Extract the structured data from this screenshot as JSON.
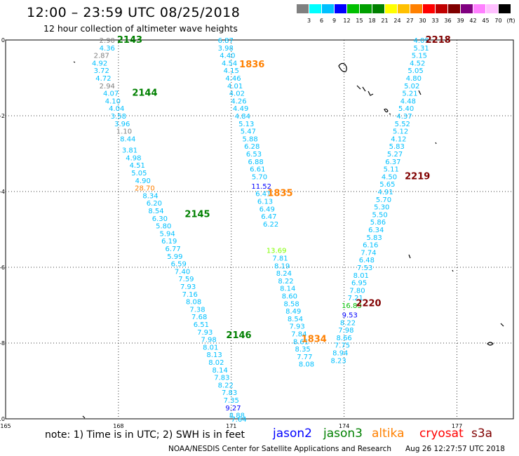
{
  "title": "12:00  –  23:59 UTC 08/25/2018",
  "subtitle": "12 hour collection of altimeter wave heights",
  "legend": {
    "colors": [
      "#808080",
      "#00ffff",
      "#00c0ff",
      "#0000ff",
      "#00c000",
      "#00a000",
      "#008000",
      "#ffff00",
      "#ffc000",
      "#ff8000",
      "#ff0000",
      "#c00000",
      "#800000",
      "#800080",
      "#ff80ff",
      "#ffc0ff",
      "#000000"
    ],
    "labels": [
      "3",
      "6",
      "9",
      "12",
      "15",
      "18",
      "21",
      "24",
      "27",
      "30",
      "33",
      "36",
      "39",
      "42",
      "45",
      "70",
      "(ft)"
    ]
  },
  "note": "note:  1) Time is in UTC;  2) SWH is in feet",
  "satellites": [
    {
      "name": "jason2",
      "color": "#0000ff"
    },
    {
      "name": "jason3",
      "color": "#008000"
    },
    {
      "name": "altika",
      "color": "#ff8000"
    },
    {
      "name": "cryosat",
      "color": "#ff0000"
    },
    {
      "name": "s3a",
      "color": "#800000"
    }
  ],
  "credit": "NOAA/NESDIS Center for Satellite Applications and Research",
  "timestamp": "Aug 26 12:27:57 UTC 2018",
  "chart_data": {
    "type": "scatter",
    "x_ticks": [
      "165",
      "168",
      "171",
      "174",
      "177"
    ],
    "y_ticks": [
      "0",
      "-2",
      "-4",
      "-6",
      "-8",
      "-10"
    ],
    "xlim": [
      165,
      178.5
    ],
    "ylim": [
      -10,
      0
    ],
    "grid": true,
    "pass_labels": [
      {
        "text": "2143",
        "lon": 168.3,
        "lat": 0.0,
        "color": "#008000"
      },
      {
        "text": "2144",
        "lon": 168.7,
        "lat": -1.4,
        "color": "#008000"
      },
      {
        "text": "2145",
        "lon": 170.1,
        "lat": -4.6,
        "color": "#008000"
      },
      {
        "text": "2146",
        "lon": 171.2,
        "lat": -7.8,
        "color": "#008000"
      },
      {
        "text": "1836",
        "lon": 171.55,
        "lat": -0.65,
        "color": "#ff8000"
      },
      {
        "text": "1835",
        "lon": 172.3,
        "lat": -4.05,
        "color": "#ff8000"
      },
      {
        "text": "1834",
        "lon": 173.2,
        "lat": -7.9,
        "color": "#ff8000"
      },
      {
        "text": "2218",
        "lon": 176.5,
        "lat": 0.0,
        "color": "#800000"
      },
      {
        "text": "2219",
        "lon": 175.95,
        "lat": -3.6,
        "color": "#800000"
      },
      {
        "text": "2220",
        "lon": 174.65,
        "lat": -6.95,
        "color": "#800000"
      }
    ],
    "series": [
      {
        "name": "jason3 pass 2143-2146",
        "color": "#00c0ff",
        "points": [
          {
            "lon": 167.7,
            "lat": 0.0,
            "v": "2.90",
            "c": "#808080"
          },
          {
            "lon": 167.7,
            "lat": -0.2,
            "v": "4.36"
          },
          {
            "lon": 167.55,
            "lat": -0.4,
            "v": "2.87",
            "c": "#808080"
          },
          {
            "lon": 167.5,
            "lat": -0.6,
            "v": "4.92"
          },
          {
            "lon": 167.55,
            "lat": -0.8,
            "v": "3.72"
          },
          {
            "lon": 167.6,
            "lat": -1.0,
            "v": "4.72"
          },
          {
            "lon": 167.7,
            "lat": -1.2,
            "v": "2.94",
            "c": "#808080"
          },
          {
            "lon": 167.8,
            "lat": -1.4,
            "v": "4.07"
          },
          {
            "lon": 167.85,
            "lat": -1.6,
            "v": "4.10"
          },
          {
            "lon": 167.95,
            "lat": -1.8,
            "v": "4.04"
          },
          {
            "lon": 168.0,
            "lat": -2.0,
            "v": "3.58"
          },
          {
            "lon": 168.1,
            "lat": -2.2,
            "v": "3.96"
          },
          {
            "lon": 168.15,
            "lat": -2.4,
            "v": "1.10",
            "c": "#808080"
          },
          {
            "lon": 168.25,
            "lat": -2.6,
            "v": "8.44"
          },
          {
            "lon": 168.3,
            "lat": -2.9,
            "v": "3.81"
          },
          {
            "lon": 168.4,
            "lat": -3.1,
            "v": "4.98"
          },
          {
            "lon": 168.5,
            "lat": -3.3,
            "v": "4.51"
          },
          {
            "lon": 168.55,
            "lat": -3.5,
            "v": "5.05"
          },
          {
            "lon": 168.65,
            "lat": -3.7,
            "v": "4.90"
          },
          {
            "lon": 168.7,
            "lat": -3.9,
            "v": "28.70",
            "c": "#ff8000"
          },
          {
            "lon": 168.85,
            "lat": -4.1,
            "v": "8.34"
          },
          {
            "lon": 168.95,
            "lat": -4.3,
            "v": "6.20"
          },
          {
            "lon": 169.0,
            "lat": -4.5,
            "v": "8.54"
          },
          {
            "lon": 169.1,
            "lat": -4.7,
            "v": "6.30"
          },
          {
            "lon": 169.2,
            "lat": -4.9,
            "v": "5.80"
          },
          {
            "lon": 169.3,
            "lat": -5.1,
            "v": "5.94"
          },
          {
            "lon": 169.35,
            "lat": -5.3,
            "v": "6.19"
          },
          {
            "lon": 169.45,
            "lat": -5.5,
            "v": "6.77"
          },
          {
            "lon": 169.5,
            "lat": -5.7,
            "v": "5.99"
          },
          {
            "lon": 169.6,
            "lat": -5.9,
            "v": "6.59"
          },
          {
            "lon": 169.7,
            "lat": -6.1,
            "v": "7.40"
          },
          {
            "lon": 169.8,
            "lat": -6.3,
            "v": "7.59"
          },
          {
            "lon": 169.85,
            "lat": -6.5,
            "v": "7.93"
          },
          {
            "lon": 169.9,
            "lat": -6.7,
            "v": "7.16"
          },
          {
            "lon": 170.0,
            "lat": -6.9,
            "v": "8.08"
          },
          {
            "lon": 170.1,
            "lat": -7.1,
            "v": "7.38"
          },
          {
            "lon": 170.15,
            "lat": -7.3,
            "v": "7.68"
          },
          {
            "lon": 170.2,
            "lat": -7.5,
            "v": "6.51"
          },
          {
            "lon": 170.3,
            "lat": -7.7,
            "v": "7.93"
          },
          {
            "lon": 170.4,
            "lat": -7.9,
            "v": "7.98"
          },
          {
            "lon": 170.45,
            "lat": -8.1,
            "v": "8.01"
          },
          {
            "lon": 170.55,
            "lat": -8.3,
            "v": "8.13"
          },
          {
            "lon": 170.6,
            "lat": -8.5,
            "v": "8.02"
          },
          {
            "lon": 170.7,
            "lat": -8.7,
            "v": "8.14"
          },
          {
            "lon": 170.75,
            "lat": -8.9,
            "v": "7.83"
          },
          {
            "lon": 170.85,
            "lat": -9.1,
            "v": "8.22"
          },
          {
            "lon": 170.95,
            "lat": -9.3,
            "v": "7.83"
          },
          {
            "lon": 171.0,
            "lat": -9.5,
            "v": "7.35"
          },
          {
            "lon": 171.05,
            "lat": -9.7,
            "v": "9.27",
            "c": "#0000ff"
          },
          {
            "lon": 171.15,
            "lat": -9.9,
            "v": "8.88"
          },
          {
            "lon": 171.2,
            "lat": -10.0,
            "v": "7.64"
          }
        ]
      },
      {
        "name": "altika pass 1834-1836",
        "color": "#00c0ff",
        "points": [
          {
            "lon": 170.85,
            "lat": 0.0,
            "v": "6.87"
          },
          {
            "lon": 170.85,
            "lat": -0.2,
            "v": "3.98"
          },
          {
            "lon": 170.9,
            "lat": -0.4,
            "v": "4.40"
          },
          {
            "lon": 170.95,
            "lat": -0.6,
            "v": "4.54"
          },
          {
            "lon": 171.0,
            "lat": -0.8,
            "v": "4.15"
          },
          {
            "lon": 171.05,
            "lat": -1.0,
            "v": "4.46"
          },
          {
            "lon": 171.1,
            "lat": -1.2,
            "v": "4.01"
          },
          {
            "lon": 171.15,
            "lat": -1.4,
            "v": "4.02"
          },
          {
            "lon": 171.2,
            "lat": -1.6,
            "v": "4.26"
          },
          {
            "lon": 171.25,
            "lat": -1.8,
            "v": "4.49"
          },
          {
            "lon": 171.3,
            "lat": -2.0,
            "v": "4.84"
          },
          {
            "lon": 171.4,
            "lat": -2.2,
            "v": "5.13"
          },
          {
            "lon": 171.45,
            "lat": -2.4,
            "v": "5.47"
          },
          {
            "lon": 171.5,
            "lat": -2.6,
            "v": "5.88"
          },
          {
            "lon": 171.55,
            "lat": -2.8,
            "v": "6.28"
          },
          {
            "lon": 171.6,
            "lat": -3.0,
            "v": "6.53"
          },
          {
            "lon": 171.65,
            "lat": -3.2,
            "v": "6.88"
          },
          {
            "lon": 171.7,
            "lat": -3.4,
            "v": "6.61"
          },
          {
            "lon": 171.75,
            "lat": -3.6,
            "v": "5.70"
          },
          {
            "lon": 171.8,
            "lat": -3.85,
            "v": "11.52",
            "c": "#0000ff"
          },
          {
            "lon": 171.85,
            "lat": -4.05,
            "v": "6.41"
          },
          {
            "lon": 171.9,
            "lat": -4.25,
            "v": "6.13"
          },
          {
            "lon": 171.95,
            "lat": -4.45,
            "v": "6.49"
          },
          {
            "lon": 172.0,
            "lat": -4.65,
            "v": "6.47"
          },
          {
            "lon": 172.05,
            "lat": -4.85,
            "v": "6.22"
          },
          {
            "lon": 172.2,
            "lat": -5.55,
            "v": "13.69",
            "c": "#80ff00"
          },
          {
            "lon": 172.3,
            "lat": -5.75,
            "v": "7.81"
          },
          {
            "lon": 172.35,
            "lat": -5.95,
            "v": "8.19"
          },
          {
            "lon": 172.4,
            "lat": -6.15,
            "v": "8.24"
          },
          {
            "lon": 172.45,
            "lat": -6.35,
            "v": "8.22"
          },
          {
            "lon": 172.5,
            "lat": -6.55,
            "v": "8.14"
          },
          {
            "lon": 172.55,
            "lat": -6.75,
            "v": "8.60"
          },
          {
            "lon": 172.6,
            "lat": -6.95,
            "v": "8.58"
          },
          {
            "lon": 172.65,
            "lat": -7.15,
            "v": "8.49"
          },
          {
            "lon": 172.7,
            "lat": -7.35,
            "v": "8.54"
          },
          {
            "lon": 172.75,
            "lat": -7.55,
            "v": "7.93"
          },
          {
            "lon": 172.8,
            "lat": -7.75,
            "v": "7.84"
          },
          {
            "lon": 172.85,
            "lat": -7.95,
            "v": "8.61"
          },
          {
            "lon": 172.9,
            "lat": -8.15,
            "v": "8.35"
          },
          {
            "lon": 172.95,
            "lat": -8.35,
            "v": "7.77"
          },
          {
            "lon": 173.0,
            "lat": -8.55,
            "v": "8.08"
          }
        ]
      },
      {
        "name": "cryosat pass 2218-2220",
        "color": "#00c0ff",
        "points": [
          {
            "lon": 176.05,
            "lat": 0.0,
            "v": "4.09"
          },
          {
            "lon": 176.05,
            "lat": -0.2,
            "v": "5.31"
          },
          {
            "lon": 176.0,
            "lat": -0.4,
            "v": "5.15"
          },
          {
            "lon": 175.95,
            "lat": -0.6,
            "v": "4.52"
          },
          {
            "lon": 175.9,
            "lat": -0.8,
            "v": "5.05"
          },
          {
            "lon": 175.85,
            "lat": -1.0,
            "v": "4.80"
          },
          {
            "lon": 175.8,
            "lat": -1.2,
            "v": "5.02"
          },
          {
            "lon": 175.75,
            "lat": -1.4,
            "v": "5.21"
          },
          {
            "lon": 175.7,
            "lat": -1.6,
            "v": "4.48"
          },
          {
            "lon": 175.65,
            "lat": -1.8,
            "v": "5.40"
          },
          {
            "lon": 175.6,
            "lat": -2.0,
            "v": "4.37"
          },
          {
            "lon": 175.55,
            "lat": -2.2,
            "v": "5.52"
          },
          {
            "lon": 175.5,
            "lat": -2.4,
            "v": "5.12"
          },
          {
            "lon": 175.45,
            "lat": -2.6,
            "v": "4.12"
          },
          {
            "lon": 175.4,
            "lat": -2.8,
            "v": "5.83"
          },
          {
            "lon": 175.35,
            "lat": -3.0,
            "v": "5.27"
          },
          {
            "lon": 175.3,
            "lat": -3.2,
            "v": "6.37"
          },
          {
            "lon": 175.25,
            "lat": -3.4,
            "v": "5.11"
          },
          {
            "lon": 175.2,
            "lat": -3.6,
            "v": "4.50"
          },
          {
            "lon": 175.15,
            "lat": -3.8,
            "v": "5.65"
          },
          {
            "lon": 175.1,
            "lat": -4.0,
            "v": "4.91"
          },
          {
            "lon": 175.05,
            "lat": -4.2,
            "v": "5.70"
          },
          {
            "lon": 175.0,
            "lat": -4.4,
            "v": "5.30"
          },
          {
            "lon": 174.95,
            "lat": -4.6,
            "v": "5.50"
          },
          {
            "lon": 174.9,
            "lat": -4.8,
            "v": "5.86"
          },
          {
            "lon": 174.85,
            "lat": -5.0,
            "v": "6.34"
          },
          {
            "lon": 174.8,
            "lat": -5.2,
            "v": "5.83"
          },
          {
            "lon": 174.7,
            "lat": -5.4,
            "v": "6.16"
          },
          {
            "lon": 174.65,
            "lat": -5.6,
            "v": "7.74"
          },
          {
            "lon": 174.6,
            "lat": -5.8,
            "v": "6.48"
          },
          {
            "lon": 174.55,
            "lat": -6.0,
            "v": "7.53"
          },
          {
            "lon": 174.45,
            "lat": -6.2,
            "v": "8.01"
          },
          {
            "lon": 174.4,
            "lat": -6.4,
            "v": "6.95"
          },
          {
            "lon": 174.35,
            "lat": -6.6,
            "v": "7.80"
          },
          {
            "lon": 174.3,
            "lat": -6.8,
            "v": "7.21"
          },
          {
            "lon": 174.2,
            "lat": -7.0,
            "v": "16.83",
            "c": "#00c000"
          },
          {
            "lon": 174.15,
            "lat": -7.25,
            "v": "9.53",
            "c": "#0000ff"
          },
          {
            "lon": 174.1,
            "lat": -7.45,
            "v": "8.22"
          },
          {
            "lon": 174.05,
            "lat": -7.65,
            "v": "7.98"
          },
          {
            "lon": 174.0,
            "lat": -7.85,
            "v": "8.66"
          },
          {
            "lon": 173.95,
            "lat": -8.05,
            "v": "7.75"
          },
          {
            "lon": 173.9,
            "lat": -8.25,
            "v": "8.94"
          },
          {
            "lon": 173.85,
            "lat": -8.45,
            "v": "8.23"
          }
        ]
      }
    ]
  }
}
